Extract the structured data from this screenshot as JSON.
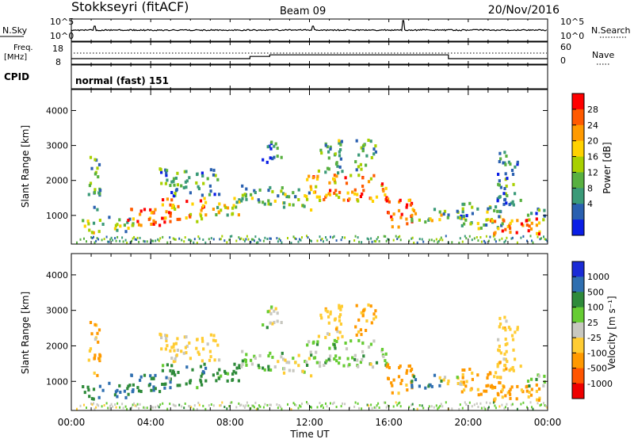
{
  "header": {
    "station": "Stokkseyri (fitACF)",
    "beam": "Beam 09",
    "date": "20/Nov/2016"
  },
  "noise_panel": {
    "left_label": "N.Sky",
    "right_label": "N.Search",
    "left_ticks": [
      "10^5",
      "10^0"
    ],
    "right_ticks": [
      "10^5",
      "10^0"
    ]
  },
  "freq_panel": {
    "left_label_line1": "Freq.",
    "left_label_line2": "[MHz]",
    "left_ticks": [
      "18",
      "8"
    ],
    "right_label": "Nave",
    "right_ticks": [
      "60",
      "0"
    ]
  },
  "cpid": {
    "label": "CPID",
    "value": "normal (fast) 151"
  },
  "power_panel": {
    "ylabel": "Slant Range [km]",
    "colorbar_label": "Power [dB]",
    "colorbar_ticks": [
      "28",
      "24",
      "20",
      "16",
      "12",
      "8",
      "4"
    ],
    "colorbar_colors": [
      "#ff0000",
      "#ff5a00",
      "#ff9a00",
      "#ffd200",
      "#a8d000",
      "#58b040",
      "#3a9a78",
      "#2a60b0",
      "#0a1ee6"
    ]
  },
  "velocity_panel": {
    "ylabel": "Slant Range [km]",
    "colorbar_label": "Velocity [m s⁻¹]",
    "colorbar_ticks": [
      "1000",
      "500",
      "100",
      "25",
      "-25",
      "-100",
      "-500",
      "-1000"
    ],
    "colorbar_colors": [
      "#1a2bd6",
      "#2f6fb0",
      "#2e8a3a",
      "#66cc33",
      "#c8c8c0",
      "#ffcc33",
      "#ff9900",
      "#ff5500",
      "#ee0000"
    ]
  },
  "time_axis": {
    "label": "Time UT",
    "ticks": [
      "00:00",
      "04:00",
      "08:00",
      "12:00",
      "16:00",
      "20:00",
      "00:00"
    ]
  },
  "chart_data": {
    "type": "heatmap",
    "title": "Stokkseyri (fitACF)",
    "xlabel": "Time UT",
    "x_range_hours": [
      0,
      24
    ],
    "ylabel": "Slant Range [km]",
    "ylim_km": [
      180,
      4600
    ],
    "y_ticks": [
      1000,
      2000,
      3000,
      4000
    ],
    "frequency_step": {
      "times_hours": [
        0,
        9.0,
        10.0,
        19.0,
        24
      ],
      "mhz": [
        10.5,
        11.5,
        12.2,
        10.5
      ]
    },
    "search_freq_mhz": 13.0,
    "power_db": {
      "range": [
        0,
        30
      ],
      "cmap": "power"
    },
    "velocity": {
      "range_mps": [
        -1000,
        1000
      ],
      "cmap": "velocity"
    },
    "echo_regions": [
      {
        "t": [
          0.3,
          1.2
        ],
        "r": [
          480,
          900
        ],
        "p": 14,
        "v": 60
      },
      {
        "t": [
          0.8,
          1.4
        ],
        "r": [
          1000,
          2700
        ],
        "p": 10,
        "v": -80
      },
      {
        "t": [
          1.3,
          3.2
        ],
        "r": [
          520,
          950
        ],
        "p": 12,
        "v": 110
      },
      {
        "t": [
          2.8,
          4.8
        ],
        "r": [
          650,
          1180
        ],
        "p": 24,
        "v": 90
      },
      {
        "t": [
          4.5,
          6.8
        ],
        "r": [
          800,
          1500
        ],
        "p": 22,
        "v": 70
      },
      {
        "t": [
          4.4,
          7.4
        ],
        "r": [
          1550,
          2350
        ],
        "p": 8,
        "v": -40
      },
      {
        "t": [
          6.6,
          8.6
        ],
        "r": [
          1000,
          1500
        ],
        "p": 14,
        "v": 40
      },
      {
        "t": [
          8.5,
          10.6
        ],
        "r": [
          1250,
          1850
        ],
        "p": 10,
        "v": 5
      },
      {
        "t": [
          9.5,
          10.6
        ],
        "r": [
          2500,
          3100
        ],
        "p": 8,
        "v": 0
      },
      {
        "t": [
          10.6,
          12.2
        ],
        "r": [
          1150,
          1750
        ],
        "p": 12,
        "v": -15
      },
      {
        "t": [
          11.8,
          15.9
        ],
        "r": [
          1400,
          2150
        ],
        "p": 22,
        "v": 10
      },
      {
        "t": [
          12.3,
          13.6
        ],
        "r": [
          2150,
          3200
        ],
        "p": 12,
        "v": -60
      },
      {
        "t": [
          14.2,
          15.3
        ],
        "r": [
          2300,
          3200
        ],
        "p": 10,
        "v": -120
      },
      {
        "t": [
          15.8,
          17.2
        ],
        "r": [
          650,
          1500
        ],
        "p": 25,
        "v": -250
      },
      {
        "t": [
          17.0,
          18.6
        ],
        "r": [
          800,
          1200
        ],
        "p": 16,
        "v": 150
      },
      {
        "t": [
          18.2,
          20.2
        ],
        "r": [
          880,
          1150
        ],
        "p": 10,
        "v": -20
      },
      {
        "t": [
          19.4,
          21.7
        ],
        "r": [
          600,
          1350
        ],
        "p": 12,
        "v": -150
      },
      {
        "t": [
          21.0,
          23.9
        ],
        "r": [
          380,
          900
        ],
        "p": 24,
        "v": -180
      },
      {
        "t": [
          21.4,
          22.6
        ],
        "r": [
          1300,
          2900
        ],
        "p": 8,
        "v": -60
      },
      {
        "t": [
          22.8,
          23.9
        ],
        "r": [
          850,
          1200
        ],
        "p": 10,
        "v": 10
      }
    ]
  }
}
